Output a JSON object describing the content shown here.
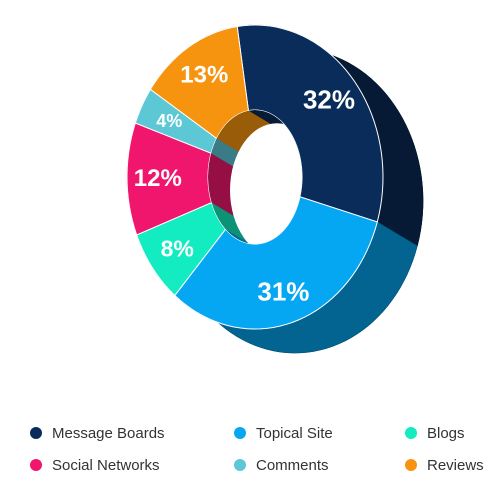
{
  "chart_data": {
    "type": "pie",
    "title": "",
    "categories": [
      "Message Boards",
      "Topical Site",
      "Blogs",
      "Social Networks",
      "Comments",
      "Reviews"
    ],
    "values": [
      32,
      31,
      8,
      12,
      4,
      13
    ],
    "value_labels": [
      "32%",
      "31%",
      "8%",
      "12%",
      "4%",
      "13%"
    ],
    "colors": [
      "#0a2c5a",
      "#06a7f2",
      "#13ecc0",
      "#f0166e",
      "#5cc8d6",
      "#f7940f"
    ],
    "legend_position": "bottom",
    "legend": [
      {
        "label": "Message Boards",
        "color": "#0a2c5a"
      },
      {
        "label": "Topical Site",
        "color": "#06a7f2"
      },
      {
        "label": "Blogs",
        "color": "#13ecc0"
      },
      {
        "label": "Social Networks",
        "color": "#f0166e"
      },
      {
        "label": "Comments",
        "color": "#5cc8d6"
      },
      {
        "label": "Reviews",
        "color": "#f7940f"
      }
    ]
  }
}
